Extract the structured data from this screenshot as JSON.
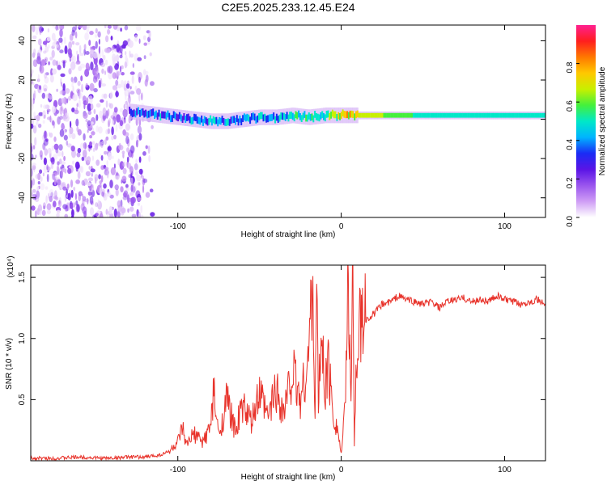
{
  "title": "C2E5.2025.233.12.45.E24",
  "colors": {
    "snr_line": "#e8332b",
    "colormap": [
      "#ffffff",
      "#cf9df5",
      "#9a55ee",
      "#5a14e6",
      "#1a2cf5",
      "#00b4ff",
      "#00e8c8",
      "#44f03c",
      "#c8f000",
      "#ffc800",
      "#ff7800",
      "#ff1e1e",
      "#ff2090"
    ]
  },
  "chart_data": [
    {
      "type": "heatmap",
      "title": "C2E5.2025.233.12.45.E24",
      "xlabel": "Height of straight line (km)",
      "ylabel": "Frequency (Hz)",
      "xlim": [
        -190,
        125
      ],
      "ylim": [
        -50,
        48
      ],
      "xticks": [
        -100,
        0,
        100
      ],
      "yticks": [
        -40,
        -20,
        0,
        20,
        40
      ],
      "colorbar": {
        "label": "Normalized spectral amplitude",
        "range": [
          0.0,
          1.0
        ],
        "ticks": [
          "0.0",
          "0.2",
          "0.4",
          "0.6",
          "0.8"
        ]
      },
      "band": {
        "x": [
          -130,
          -120,
          -110,
          -100,
          -90,
          -80,
          -70,
          -60,
          -50,
          -40,
          -30,
          -20,
          -10,
          0,
          10,
          20,
          40,
          60,
          80,
          100,
          125
        ],
        "center_hz": [
          4,
          3,
          2,
          1,
          0,
          -1,
          -1,
          0,
          1,
          1,
          2,
          1,
          2,
          2,
          2,
          2,
          2,
          2,
          2,
          2,
          2
        ],
        "amplitude": [
          0.3,
          0.35,
          0.35,
          0.35,
          0.35,
          0.4,
          0.4,
          0.4,
          0.45,
          0.4,
          0.45,
          0.5,
          0.55,
          0.7,
          0.7,
          0.65,
          0.55,
          0.5,
          0.5,
          0.5,
          0.5
        ]
      },
      "noise_region_x": [
        -190,
        -115
      ]
    },
    {
      "type": "line",
      "xlabel": "Height of straight line (km)",
      "ylabel": "SNR (10 * v/v)",
      "yscale_label": "(x10⁴)",
      "xlim": [
        -190,
        125
      ],
      "ylim": [
        0,
        1.6
      ],
      "xticks": [
        -100,
        0,
        100
      ],
      "yticks": [
        "0.5",
        "1.0",
        "1.5"
      ],
      "series": [
        {
          "name": "SNR",
          "x": [
            -190,
            -175,
            -160,
            -145,
            -130,
            -120,
            -110,
            -105,
            -100,
            -97,
            -95,
            -90,
            -85,
            -80,
            -78,
            -75,
            -70,
            -65,
            -60,
            -55,
            -50,
            -45,
            -40,
            -35,
            -30,
            -25,
            -20,
            -18,
            -16,
            -15,
            -14,
            -12,
            -10,
            -8,
            -5,
            -2,
            0,
            2,
            4,
            6,
            7,
            8,
            9,
            10,
            12,
            15,
            20,
            25,
            30,
            35,
            40,
            45,
            50,
            55,
            60,
            65,
            70,
            75,
            80,
            85,
            90,
            95,
            100,
            105,
            110,
            115,
            120,
            125
          ],
          "y": [
            0.02,
            0.02,
            0.03,
            0.02,
            0.03,
            0.03,
            0.05,
            0.08,
            0.15,
            0.26,
            0.12,
            0.22,
            0.15,
            0.28,
            0.55,
            0.2,
            0.5,
            0.25,
            0.45,
            0.3,
            0.55,
            0.35,
            0.6,
            0.4,
            0.75,
            0.5,
            0.85,
            1.47,
            0.45,
            1.35,
            0.5,
            1.0,
            0.6,
            0.8,
            0.4,
            0.25,
            0.05,
            0.35,
            1.3,
            0.7,
            1.62,
            0.1,
            0.8,
            0.95,
            1.1,
            1.15,
            1.2,
            1.28,
            1.3,
            1.35,
            1.32,
            1.3,
            1.28,
            1.3,
            1.25,
            1.3,
            1.32,
            1.33,
            1.3,
            1.32,
            1.3,
            1.35,
            1.32,
            1.3,
            1.28,
            1.3,
            1.32,
            1.27
          ]
        }
      ]
    }
  ]
}
